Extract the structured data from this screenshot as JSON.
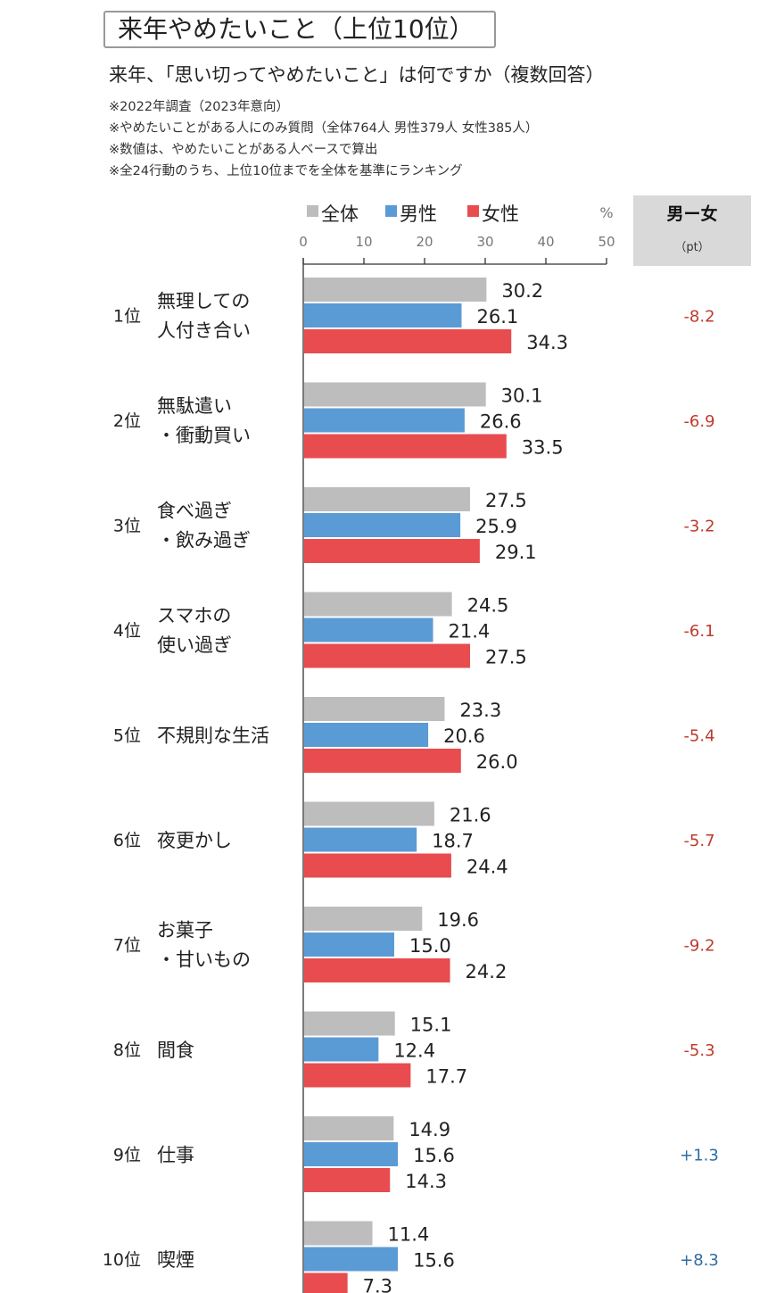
{
  "title": "来年やめたいこと（上位10位）",
  "subtitle": "来年、「思い切ってやめたいこと」は何ですか（複数回答）",
  "notes": [
    "※2022年調査（2023年意向）",
    "※やめたいことがある人にのみ質問（全体764人  男性379人  女性385人）",
    "※数値は、やめたいことがある人ベースで算出",
    "※全24行動のうち、上位10位までを全体を基準にランキング"
  ],
  "chart_data": {
    "type": "bar",
    "orientation": "horizontal",
    "legend": [
      "全体",
      "男性",
      "女性"
    ],
    "unit": "%",
    "xlim": [
      0,
      50
    ],
    "x_ticks": [
      "0",
      "10",
      "20",
      "30",
      "40",
      "50"
    ],
    "diff_header": "男ー女",
    "diff_unit": "（pt）",
    "ranks": [
      "1位",
      "2位",
      "3位",
      "4位",
      "5位",
      "6位",
      "7位",
      "8位",
      "9位",
      "10位"
    ],
    "categories": [
      [
        "無理しての",
        "人付き合い"
      ],
      [
        "無駄遣い",
        "・衝動買い"
      ],
      [
        "食べ過ぎ",
        "・飲み過ぎ"
      ],
      [
        "スマホの",
        "使い過ぎ"
      ],
      [
        "不規則な生活"
      ],
      [
        "夜更かし"
      ],
      [
        "お菓子",
        "・甘いもの"
      ],
      [
        "間食"
      ],
      [
        "仕事"
      ],
      [
        "喫煙"
      ]
    ],
    "series": [
      {
        "name": "全体",
        "color": "#bdbdbd",
        "values": [
          30.2,
          30.1,
          27.5,
          24.5,
          23.3,
          21.6,
          19.6,
          15.1,
          14.9,
          11.4
        ],
        "labels": [
          "30.2",
          "30.1",
          "27.5",
          "24.5",
          "23.3",
          "21.6",
          "19.6",
          "15.1",
          "14.9",
          "11.4"
        ]
      },
      {
        "name": "男性",
        "color": "#5b9bd5",
        "values": [
          26.1,
          26.6,
          25.9,
          21.4,
          20.6,
          18.7,
          15.0,
          12.4,
          15.6,
          15.6
        ],
        "labels": [
          "26.1",
          "26.6",
          "25.9",
          "21.4",
          "20.6",
          "18.7",
          "15.0",
          "12.4",
          "15.6",
          "15.6"
        ]
      },
      {
        "name": "女性",
        "color": "#e84c4f",
        "values": [
          34.3,
          33.5,
          29.1,
          27.5,
          26.0,
          24.4,
          24.2,
          17.7,
          14.3,
          7.3
        ],
        "labels": [
          "34.3",
          "33.5",
          "29.1",
          "27.5",
          "26.0",
          "24.4",
          "24.2",
          "17.7",
          "14.3",
          "7.3"
        ]
      }
    ],
    "diff": [
      "-8.2",
      "-6.9",
      "-3.2",
      "-6.1",
      "-5.4",
      "-5.7",
      "-9.2",
      "-5.3",
      "+1.3",
      "+8.3"
    ],
    "diff_colors": {
      "negative": "#c0392b",
      "positive": "#2e6da4"
    },
    "grid": false
  }
}
